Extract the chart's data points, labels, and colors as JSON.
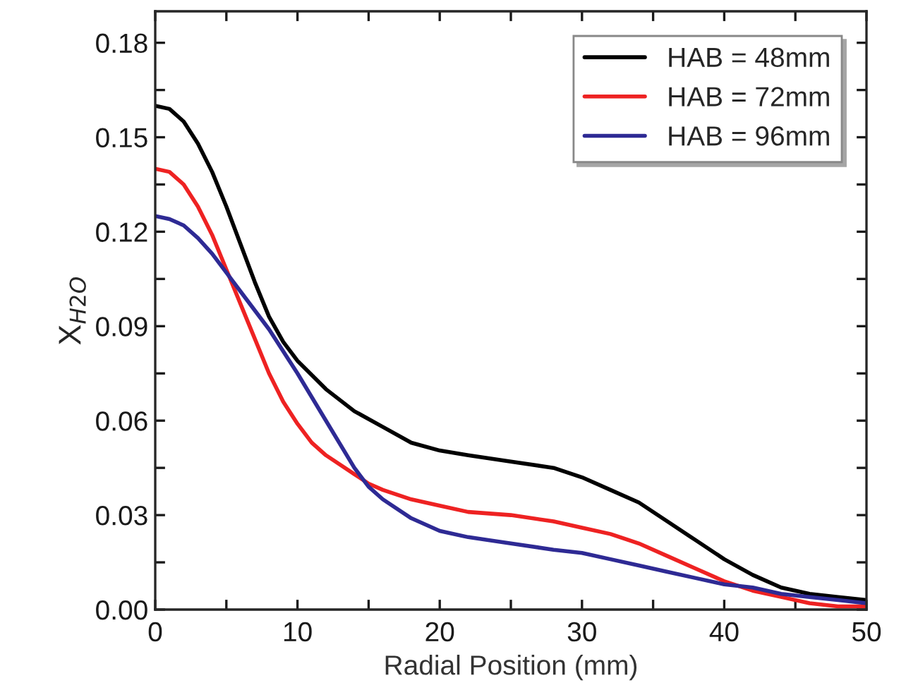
{
  "chart_data": {
    "type": "line",
    "xlabel": "Radial Position (mm)",
    "ylabel": "X$_{H2O}$",
    "xlim": [
      0,
      50
    ],
    "ylim": [
      0,
      0.19
    ],
    "xticks": [
      0,
      {
        "value": 5,
        "label": null
      },
      10,
      {
        "value": 15,
        "label": null
      },
      20,
      {
        "value": 25,
        "label": null
      },
      30,
      {
        "value": 35,
        "label": null
      },
      40,
      {
        "value": 45,
        "label": null
      },
      50
    ],
    "yticks": [
      {
        "value": 0,
        "label": "0.00"
      },
      {
        "value": 0.015,
        "label": null
      },
      {
        "value": 0.03,
        "label": "0.03"
      },
      {
        "value": 0.045,
        "label": null
      },
      {
        "value": 0.06,
        "label": "0.06"
      },
      {
        "value": 0.075,
        "label": null
      },
      {
        "value": 0.09,
        "label": "0.09"
      },
      {
        "value": 0.105,
        "label": null
      },
      {
        "value": 0.12,
        "label": "0.12"
      },
      {
        "value": 0.135,
        "label": null
      },
      {
        "value": 0.15,
        "label": "0.15"
      },
      {
        "value": 0.165,
        "label": null
      },
      {
        "value": 0.18,
        "label": "0.18"
      }
    ],
    "legend": "top right",
    "grid": false,
    "marker": "none",
    "line_style": "solid",
    "series": [
      {
        "name": "HAB = 48mm",
        "color": "#000000",
        "x": [
          0,
          1,
          2,
          3,
          4,
          5,
          6,
          7,
          8,
          9,
          10,
          12,
          14,
          16,
          18,
          20,
          22,
          25,
          28,
          30,
          32,
          34,
          36,
          38,
          40,
          42,
          44,
          46,
          48,
          50
        ],
        "values": [
          0.16,
          0.159,
          0.155,
          0.148,
          0.139,
          0.128,
          0.116,
          0.104,
          0.093,
          0.085,
          0.079,
          0.07,
          0.063,
          0.058,
          0.053,
          0.0505,
          0.049,
          0.047,
          0.045,
          0.042,
          0.038,
          0.034,
          0.028,
          0.022,
          0.016,
          0.011,
          0.007,
          0.005,
          0.004,
          0.003
        ]
      },
      {
        "name": "HAB = 72mm",
        "color": "#ee2222",
        "x": [
          0,
          1,
          2,
          3,
          4,
          5,
          6,
          7,
          8,
          9,
          10,
          11,
          12,
          14,
          15,
          16,
          18,
          20,
          22,
          25,
          28,
          30,
          32,
          34,
          36,
          38,
          40,
          42,
          44,
          46,
          48,
          50
        ],
        "values": [
          0.14,
          0.139,
          0.135,
          0.128,
          0.119,
          0.108,
          0.097,
          0.086,
          0.075,
          0.066,
          0.059,
          0.053,
          0.049,
          0.043,
          0.04,
          0.038,
          0.035,
          0.033,
          0.031,
          0.03,
          0.028,
          0.026,
          0.024,
          0.021,
          0.017,
          0.013,
          0.009,
          0.006,
          0.004,
          0.002,
          0.001,
          0.001
        ]
      },
      {
        "name": "HAB = 96mm",
        "color": "#2e2a94",
        "x": [
          0,
          1,
          2,
          3,
          4,
          5,
          6,
          7,
          8,
          9,
          10,
          12,
          14,
          15,
          16,
          18,
          20,
          22,
          25,
          28,
          30,
          32,
          34,
          36,
          38,
          40,
          42,
          44,
          46,
          48,
          50
        ],
        "values": [
          0.125,
          0.124,
          0.122,
          0.118,
          0.113,
          0.107,
          0.101,
          0.095,
          0.089,
          0.082,
          0.075,
          0.06,
          0.045,
          0.039,
          0.035,
          0.029,
          0.025,
          0.023,
          0.021,
          0.019,
          0.018,
          0.016,
          0.014,
          0.012,
          0.01,
          0.008,
          0.007,
          0.005,
          0.004,
          0.003,
          0.002
        ]
      }
    ]
  }
}
